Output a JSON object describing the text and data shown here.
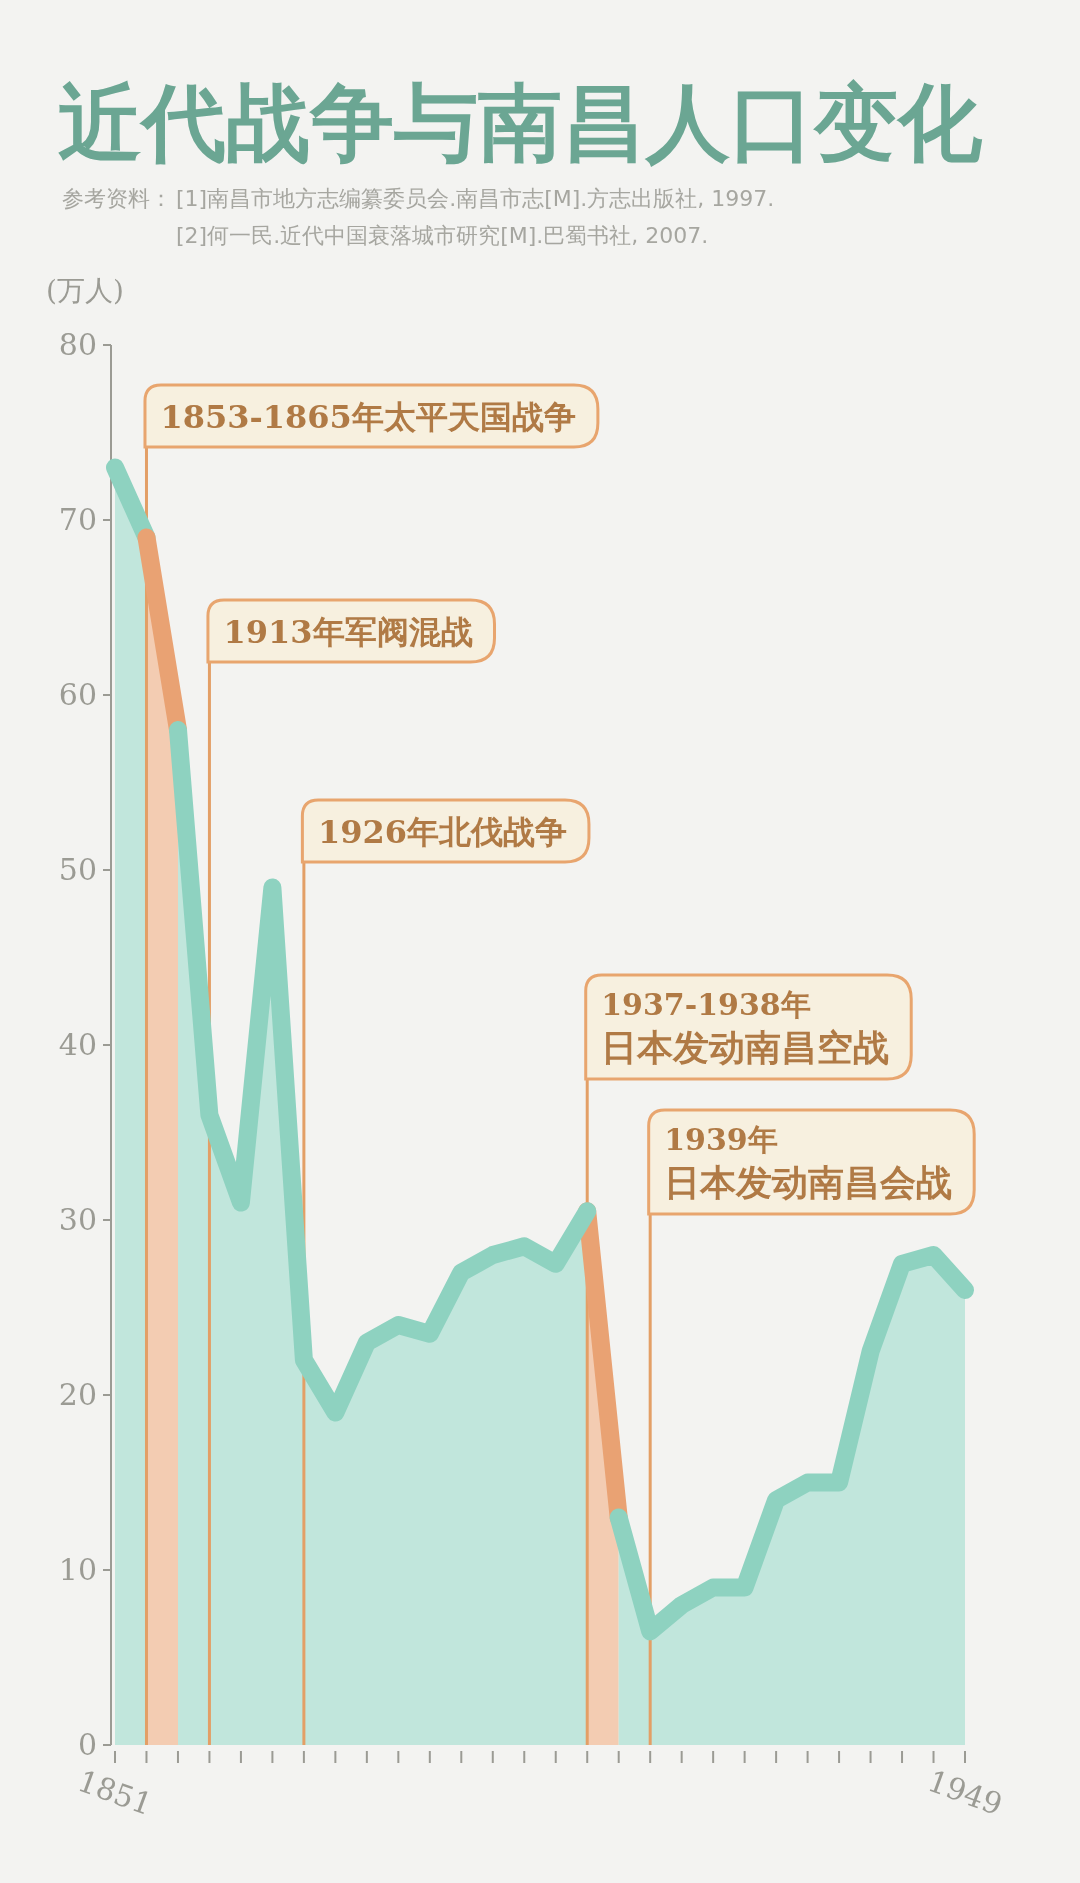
{
  "chart_data": {
    "type": "area",
    "title": "近代战争与南昌人口变化",
    "ylabel": "(万人)",
    "annotations": [
      "1853-1865年太平天国战争",
      "1913年军阀混战",
      "1926年北伐战争",
      "1937-1938年",
      "日本发动南昌空战",
      "1939年",
      "日本发动南昌会战",
      "参考资料：",
      "[1]南昌市地方志编纂委员会.南昌市志[M].方志出版社, 1997.",
      "[2]何一民.近代中国衰落城市研究[M].巴蜀书社, 2007."
    ],
    "categories": [
      "1851",
      null,
      null,
      null,
      null,
      null,
      null,
      null,
      null,
      null,
      null,
      null,
      null,
      null,
      null,
      null,
      null,
      null,
      null,
      null,
      null,
      null,
      null,
      null,
      null,
      null,
      null,
      "1949"
    ],
    "series": [
      {
        "color": "#8ed2c0",
        "values": [
          73,
          69,
          null,
          null,
          null,
          null,
          null,
          null,
          null,
          null,
          null,
          null,
          null,
          null,
          null,
          null,
          null,
          null,
          null,
          null,
          null,
          null,
          null,
          null,
          null,
          null,
          null,
          null
        ]
      },
      {
        "color": "#e9a273",
        "values": [
          null,
          69,
          58,
          null,
          null,
          null,
          null,
          null,
          null,
          null,
          null,
          null,
          null,
          null,
          null,
          30.5,
          13,
          null,
          null,
          null,
          null,
          null,
          null,
          null,
          null,
          null,
          null,
          null
        ]
      },
      {
        "color": "#8ed2c0",
        "values": [
          null,
          null,
          58,
          36,
          31,
          49,
          22,
          19,
          23,
          24,
          23.5,
          27,
          28,
          28.5,
          27.5,
          30.5,
          null,
          null,
          null,
          null,
          null,
          null,
          null,
          null,
          null,
          null,
          null,
          null
        ]
      },
      {
        "color": "#8ed2c0",
        "values": [
          null,
          null,
          null,
          null,
          null,
          null,
          null,
          null,
          null,
          null,
          null,
          null,
          null,
          null,
          null,
          null,
          13,
          6.5,
          8,
          9,
          9,
          14,
          15,
          15,
          22.5,
          27.5,
          28,
          26
        ]
      }
    ],
    "ylim": [
      0,
      80
    ],
    "yticks": [
      0,
      10,
      20,
      30,
      40,
      50,
      60,
      70,
      80
    ]
  }
}
